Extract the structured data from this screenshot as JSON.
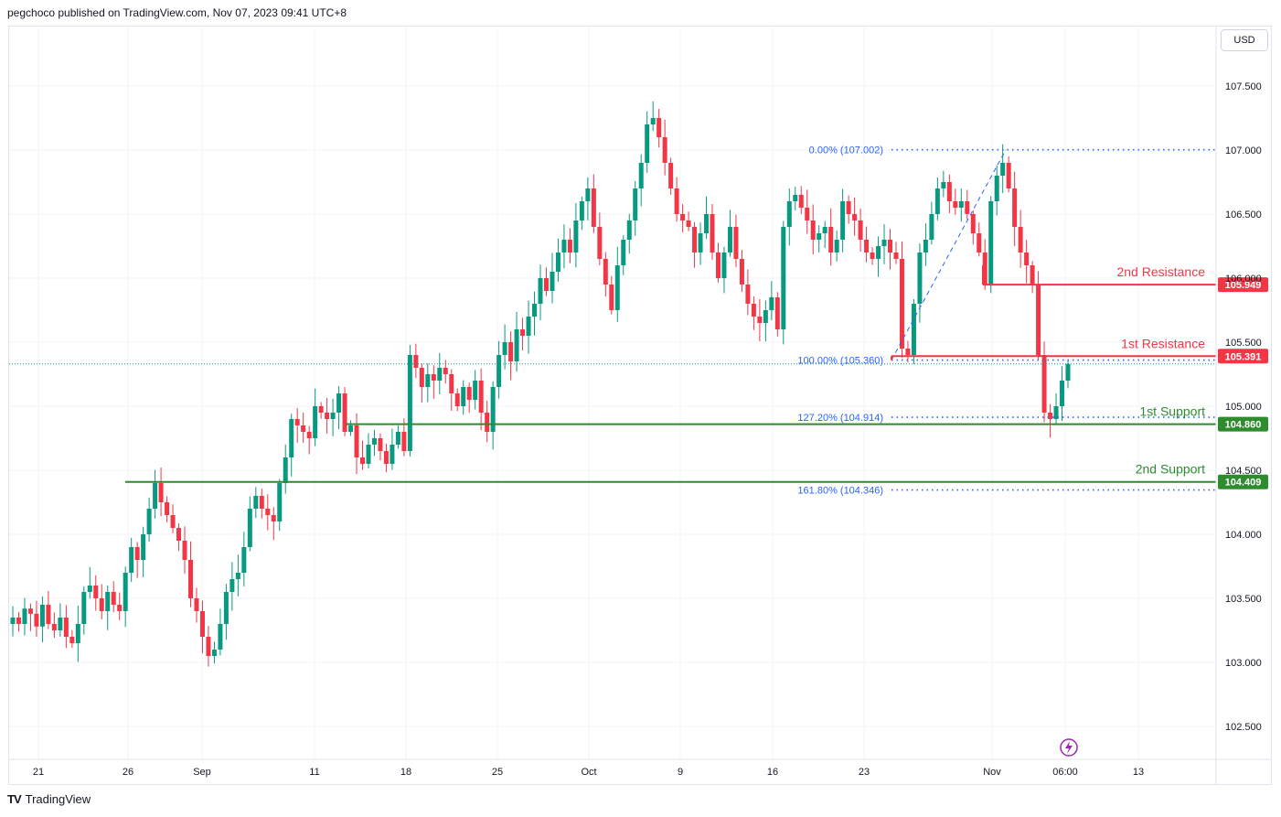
{
  "header": {
    "text": "pegchoco published on TradingView.com, Nov 07, 2023 09:41 UTC+8"
  },
  "currency": "USD",
  "brand": {
    "logo": "TV",
    "name": "TradingView"
  },
  "colors": {
    "up": "#089981",
    "down": "#f23645",
    "resistance": "#f23645",
    "support": "#2e8b2e",
    "fib": "#2962ff",
    "grid": "#f0f3fa"
  },
  "icons": {
    "lightning": "lightning-icon"
  },
  "chart_data": {
    "type": "candlestick",
    "y_ticks": [
      "107.500",
      "107.000",
      "106.500",
      "106.000",
      "105.500",
      "105.000",
      "104.500",
      "104.000",
      "103.500",
      "103.000",
      "102.500"
    ],
    "x_ticks": [
      "21",
      "26",
      "Sep",
      "11",
      "18",
      "25",
      "Oct",
      "9",
      "16",
      "23",
      "Nov",
      "06:00",
      "13"
    ],
    "fib_levels": [
      {
        "label": "0.00% (107.002)",
        "value": 107.002
      },
      {
        "label": "100.00% (105.360)",
        "value": 105.36
      },
      {
        "label": "127.20% (104.914)",
        "value": 104.914
      },
      {
        "label": "161.80% (104.346)",
        "value": 104.346
      }
    ],
    "levels": [
      {
        "name": "2nd Resistance",
        "value": 105.949,
        "value_label": "105.949",
        "kind": "resistance"
      },
      {
        "name": "1st Resistance",
        "value": 105.391,
        "value_label": "105.391",
        "kind": "resistance"
      },
      {
        "name": "1st Support",
        "value": 104.86,
        "value_label": "104.860",
        "kind": "support"
      },
      {
        "name": "2nd Support",
        "value": 104.409,
        "value_label": "104.409",
        "kind": "support"
      }
    ],
    "current_price": 105.33,
    "closes": [
      103.35,
      103.3,
      103.42,
      103.38,
      103.28,
      103.45,
      103.3,
      103.25,
      103.35,
      103.2,
      103.15,
      103.3,
      103.55,
      103.6,
      103.5,
      103.4,
      103.55,
      103.45,
      103.4,
      103.7,
      103.9,
      103.8,
      104.0,
      104.2,
      104.4,
      104.25,
      104.15,
      104.05,
      103.95,
      103.8,
      103.5,
      103.4,
      103.2,
      103.05,
      103.1,
      103.3,
      103.55,
      103.65,
      103.7,
      103.9,
      104.2,
      104.3,
      104.2,
      104.15,
      104.1,
      104.4,
      104.6,
      104.9,
      104.85,
      104.8,
      104.75,
      105.0,
      104.95,
      104.9,
      104.95,
      105.1,
      104.8,
      104.85,
      104.6,
      104.55,
      104.7,
      104.75,
      104.65,
      104.55,
      104.7,
      104.8,
      104.65,
      105.4,
      105.3,
      105.15,
      105.25,
      105.2,
      105.3,
      105.25,
      105.1,
      105.0,
      105.15,
      105.05,
      105.2,
      104.95,
      104.8,
      105.15,
      105.4,
      105.5,
      105.35,
      105.6,
      105.55,
      105.7,
      105.8,
      106.0,
      105.9,
      106.05,
      106.2,
      106.3,
      106.2,
      106.45,
      106.6,
      106.7,
      106.4,
      106.15,
      105.95,
      105.75,
      106.1,
      106.3,
      106.45,
      106.7,
      106.9,
      107.2,
      107.25,
      107.1,
      106.9,
      106.7,
      106.5,
      106.45,
      106.4,
      106.2,
      106.35,
      106.5,
      106.2,
      106.0,
      106.2,
      106.4,
      106.15,
      105.95,
      105.8,
      105.7,
      105.65,
      105.75,
      105.85,
      105.6,
      106.4,
      106.6,
      106.65,
      106.55,
      106.45,
      106.3,
      106.35,
      106.4,
      106.2,
      106.3,
      106.6,
      106.5,
      106.45,
      106.3,
      106.2,
      106.15,
      106.25,
      106.3,
      106.2,
      106.15,
      105.45,
      105.4,
      105.8,
      106.2,
      106.3,
      106.5,
      106.7,
      106.75,
      106.6,
      106.55,
      106.6,
      106.5,
      106.35,
      106.2,
      105.95,
      106.6,
      106.8,
      106.9,
      106.7,
      106.4,
      106.2,
      106.1,
      105.95,
      105.4,
      104.95,
      104.9,
      105.0,
      105.2,
      105.33
    ]
  }
}
